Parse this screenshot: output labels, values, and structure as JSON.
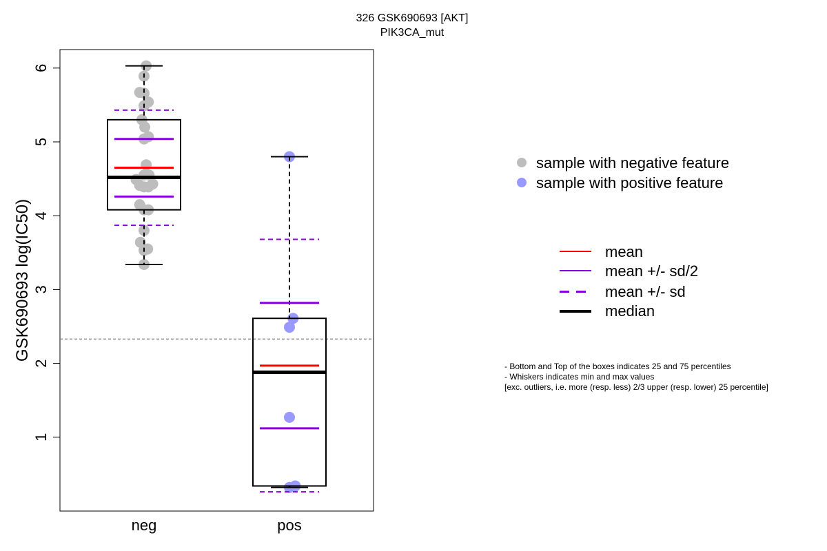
{
  "title_line1": "326 GSK690693 [AKT]",
  "title_line2": "PIK3CA_mut",
  "chart_data": {
    "type": "boxplot",
    "ylabel": "GSK690693 log(IC50)",
    "categories": [
      "neg",
      "pos"
    ],
    "ylim": [
      0.0,
      6.25
    ],
    "yticks": [
      1,
      2,
      3,
      4,
      5,
      6
    ],
    "reference_line": 2.33,
    "groups": [
      {
        "name": "neg",
        "color": "#bdbdbd",
        "q1": 4.08,
        "q3": 5.3,
        "median": 4.52,
        "mean": 4.65,
        "mean_minus_half_sd": 4.26,
        "mean_plus_half_sd": 5.04,
        "mean_minus_sd": 3.87,
        "mean_plus_sd": 5.43,
        "whisker_low": 3.34,
        "whisker_high": 6.03,
        "points": [
          {
            "x": 0.03,
            "y": 6.03
          },
          {
            "x": 0.0,
            "y": 5.89
          },
          {
            "x": -0.06,
            "y": 5.67
          },
          {
            "x": 0.0,
            "y": 5.66
          },
          {
            "x": 0.06,
            "y": 5.54
          },
          {
            "x": 0.0,
            "y": 5.49
          },
          {
            "x": -0.03,
            "y": 5.3
          },
          {
            "x": 0.01,
            "y": 5.2
          },
          {
            "x": 0.06,
            "y": 5.07
          },
          {
            "x": 0.0,
            "y": 5.04
          },
          {
            "x": 0.03,
            "y": 4.69
          },
          {
            "x": 0.0,
            "y": 4.55
          },
          {
            "x": 0.07,
            "y": 4.55
          },
          {
            "x": -0.11,
            "y": 4.49
          },
          {
            "x": -0.06,
            "y": 4.41
          },
          {
            "x": 0.0,
            "y": 4.39
          },
          {
            "x": 0.06,
            "y": 4.39
          },
          {
            "x": 0.12,
            "y": 4.43
          },
          {
            "x": -0.06,
            "y": 4.15
          },
          {
            "x": 0.0,
            "y": 4.08
          },
          {
            "x": 0.06,
            "y": 4.08
          },
          {
            "x": 0.0,
            "y": 3.8
          },
          {
            "x": -0.05,
            "y": 3.64
          },
          {
            "x": 0.05,
            "y": 3.55
          },
          {
            "x": 0.0,
            "y": 3.53
          },
          {
            "x": 0.0,
            "y": 3.34
          }
        ]
      },
      {
        "name": "pos",
        "color": "#9999ff",
        "q1": 0.34,
        "q3": 2.61,
        "median": 1.88,
        "mean": 1.97,
        "mean_minus_half_sd": 1.12,
        "mean_plus_half_sd": 2.82,
        "mean_minus_sd": 0.26,
        "mean_plus_sd": 3.68,
        "whisker_low": 0.32,
        "whisker_high": 4.8,
        "points": [
          {
            "x": 0.0,
            "y": 4.8
          },
          {
            "x": 0.05,
            "y": 2.61
          },
          {
            "x": 0.0,
            "y": 2.49
          },
          {
            "x": 0.0,
            "y": 1.27
          },
          {
            "x": 0.0,
            "y": 0.32
          },
          {
            "x": 0.08,
            "y": 0.34
          }
        ]
      }
    ]
  },
  "legend_points": [
    {
      "label": "sample with negative feature",
      "color": "#bdbdbd"
    },
    {
      "label": "sample with positive feature",
      "color": "#9999ff"
    }
  ],
  "legend_lines": [
    {
      "label": "mean",
      "color": "#ff0000",
      "style": "solid",
      "weight": "normal"
    },
    {
      "label": "mean +/- sd/2",
      "color": "#8800dd",
      "style": "solid",
      "weight": "normal"
    },
    {
      "label": "mean +/- sd",
      "color": "#8800dd",
      "style": "dashed",
      "weight": "normal"
    },
    {
      "label": "median",
      "color": "#000000",
      "style": "solid",
      "weight": "thick"
    }
  ],
  "notes": [
    "- Bottom and Top of the boxes indicates 25 and 75 percentiles",
    "- Whiskers indicates min and max values",
    "[exc. outliers, i.e. more (resp. less) 2/3 upper (resp. lower) 25 percentile]"
  ],
  "colors": {
    "mean": "#ff0000",
    "sd": "#8800dd",
    "median": "#000000",
    "reference": "#808080"
  }
}
